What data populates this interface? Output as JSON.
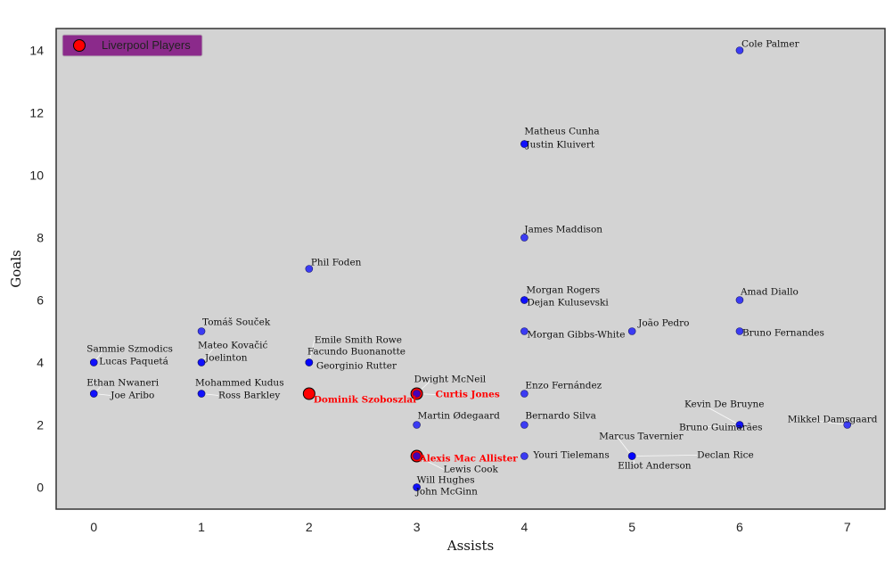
{
  "chart_data": {
    "type": "scatter",
    "xlabel": "Assists",
    "ylabel": "Goals",
    "xlim": [
      -0.35,
      7.35
    ],
    "ylim": [
      -0.7,
      14.7
    ],
    "xticks": [
      "0",
      "1",
      "2",
      "3",
      "4",
      "5",
      "6",
      "7"
    ],
    "yticks": [
      "0",
      "2",
      "4",
      "6",
      "8",
      "10",
      "12",
      "14"
    ],
    "grid": false,
    "background": "#d3d3d3",
    "legend": {
      "position": "top-left",
      "label": "Liverpool Players",
      "background": "#8b2a8b"
    },
    "colors": {
      "default": "#0000ff",
      "liverpool": "#ff0000"
    },
    "series": [
      {
        "name": "Liverpool Players",
        "points": [
          {
            "name": "Dominik Szoboszlai",
            "x": 2,
            "y": 3
          },
          {
            "name": "Curtis Jones",
            "x": 3,
            "y": 3
          },
          {
            "name": "Alexis Mac Allister",
            "x": 3,
            "y": 1
          }
        ]
      },
      {
        "name": "",
        "points": [
          {
            "name": "Cole Palmer",
            "x": 6,
            "y": 14
          },
          {
            "name": "Matheus Cunha",
            "x": 4,
            "y": 11
          },
          {
            "name": "Justin Kluivert",
            "x": 4,
            "y": 11
          },
          {
            "name": "James Maddison",
            "x": 4,
            "y": 8
          },
          {
            "name": "Phil Foden",
            "x": 2,
            "y": 7
          },
          {
            "name": "Morgan Rogers",
            "x": 4,
            "y": 6
          },
          {
            "name": "Dejan Kulusevski",
            "x": 4,
            "y": 6
          },
          {
            "name": "Amad Diallo",
            "x": 6,
            "y": 6
          },
          {
            "name": "Tomáš Souček",
            "x": 1,
            "y": 5
          },
          {
            "name": "João Pedro",
            "x": 5,
            "y": 5
          },
          {
            "name": "Morgan Gibbs-White",
            "x": 4,
            "y": 5
          },
          {
            "name": "Bruno Fernandes",
            "x": 6,
            "y": 5
          },
          {
            "name": "Sammie Szmodics",
            "x": 0,
            "y": 4
          },
          {
            "name": "Lucas Paquetá",
            "x": 0,
            "y": 4
          },
          {
            "name": "Mateo Kovačić",
            "x": 1,
            "y": 4
          },
          {
            "name": "Joelinton",
            "x": 1,
            "y": 4
          },
          {
            "name": "Emile Smith Rowe",
            "x": 2,
            "y": 4
          },
          {
            "name": "Facundo Buonanotte",
            "x": 2,
            "y": 4
          },
          {
            "name": "Georginio Rutter",
            "x": 2,
            "y": 4
          },
          {
            "name": "Ethan Nwaneri",
            "x": 0,
            "y": 3
          },
          {
            "name": "Joe Aribo",
            "x": 0,
            "y": 3
          },
          {
            "name": "Mohammed Kudus",
            "x": 1,
            "y": 3
          },
          {
            "name": "Ross Barkley",
            "x": 1,
            "y": 3
          },
          {
            "name": "Dwight McNeil",
            "x": 3,
            "y": 3
          },
          {
            "name": "Enzo Fernández",
            "x": 4,
            "y": 3
          },
          {
            "name": "Kevin De Bruyne",
            "x": 6,
            "y": 2
          },
          {
            "name": "Bruno Guimarães",
            "x": 6,
            "y": 2
          },
          {
            "name": "Mikkel Damsgaard",
            "x": 7,
            "y": 2
          },
          {
            "name": "Martin Ødegaard",
            "x": 3,
            "y": 2
          },
          {
            "name": "Bernardo Silva",
            "x": 4,
            "y": 2
          },
          {
            "name": "Marcus Tavernier",
            "x": 5,
            "y": 1
          },
          {
            "name": "Declan Rice",
            "x": 5,
            "y": 1
          },
          {
            "name": "Elliot Anderson",
            "x": 5,
            "y": 1
          },
          {
            "name": "Youri Tielemans",
            "x": 4,
            "y": 1
          },
          {
            "name": "Lewis Cook",
            "x": 3,
            "y": 1
          },
          {
            "name": "Will Hughes",
            "x": 3,
            "y": 0
          },
          {
            "name": "John McGinn",
            "x": 3,
            "y": 0
          }
        ]
      }
    ]
  }
}
